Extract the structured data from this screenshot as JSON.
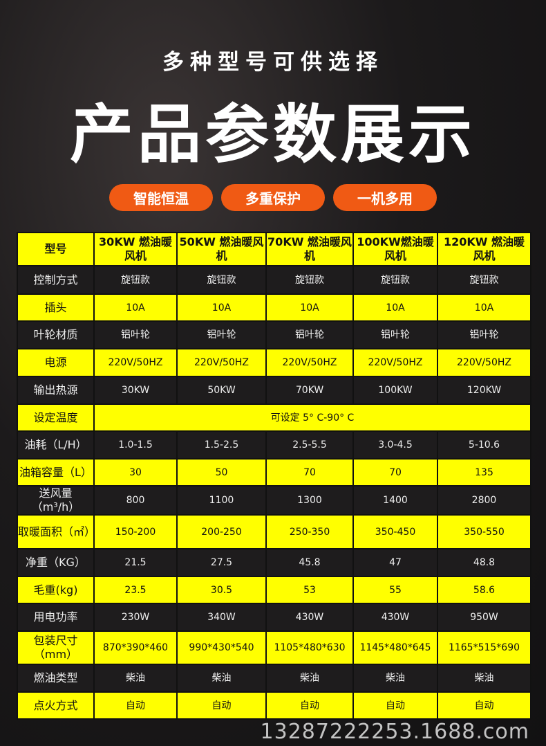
{
  "subtitle": "多种型号可供选择",
  "title": "产品参数展示",
  "features": [
    "智能恒温",
    "多重保护",
    "一机多用"
  ],
  "table": {
    "header": [
      "型号",
      "30KW 燃油暖风机",
      "50KW 燃油暖风机",
      "70KW 燃油暖风机",
      "100KW燃油暖风机",
      "120KW 燃油暖风机"
    ],
    "rows": [
      {
        "label": "控制方式",
        "values": [
          "旋钮款",
          "旋钮款",
          "旋钮款",
          "旋钮款",
          "旋钮款"
        ]
      },
      {
        "label": "插头",
        "values": [
          "10A",
          "10A",
          "10A",
          "10A",
          "10A"
        ]
      },
      {
        "label": "叶轮材质",
        "values": [
          "铝叶轮",
          "铝叶轮",
          "铝叶轮",
          "铝叶轮",
          "铝叶轮"
        ]
      },
      {
        "label": "电源",
        "values": [
          "220V/50HZ",
          "220V/50HZ",
          "220V/50HZ",
          "220V/50HZ",
          "220V/50HZ"
        ]
      },
      {
        "label": "输出热源",
        "values": [
          "30KW",
          "50KW",
          "70KW",
          "100KW",
          "120KW"
        ]
      },
      {
        "label": "设定温度",
        "span": "可设定 5° C-90° C"
      },
      {
        "label": "油耗（L/H）",
        "values": [
          "1.0-1.5",
          "1.5-2.5",
          "2.5-5.5",
          "3.0-4.5",
          "5-10.6"
        ]
      },
      {
        "label": "油箱容量（L）",
        "values": [
          "30",
          "50",
          "70",
          "70",
          "135"
        ]
      },
      {
        "label": "送风量（m³/h）",
        "values": [
          "800",
          "1100",
          "1300",
          "1400",
          "2800"
        ]
      },
      {
        "label": "取暖面积（㎡）",
        "values": [
          "150-200",
          "200-250",
          "250-350",
          "350-450",
          "350-550"
        ]
      },
      {
        "label": "净重（KG）",
        "values": [
          "21.5",
          "27.5",
          "45.8",
          "47",
          "48.8"
        ]
      },
      {
        "label": "毛重(kg)",
        "values": [
          "23.5",
          "30.5",
          "53",
          "55",
          "58.6"
        ]
      },
      {
        "label": "用电功率",
        "values": [
          "230W",
          "340W",
          "430W",
          "430W",
          "950W"
        ]
      },
      {
        "label": "包装尺寸（mm）",
        "values": [
          "870*390*460",
          "990*430*540",
          "1105*480*630",
          "1145*480*645",
          "1165*515*690"
        ]
      },
      {
        "label": "燃油类型",
        "values": [
          "柴油",
          "柴油",
          "柴油",
          "柴油",
          "柴油"
        ]
      },
      {
        "label": "点火方式",
        "values": [
          "自动",
          "自动",
          "自动",
          "自动",
          "自动"
        ]
      }
    ]
  },
  "watermark": "13287222253.1688.com",
  "colors": {
    "accent": "#f05a14",
    "highlight": "#ffff00"
  }
}
